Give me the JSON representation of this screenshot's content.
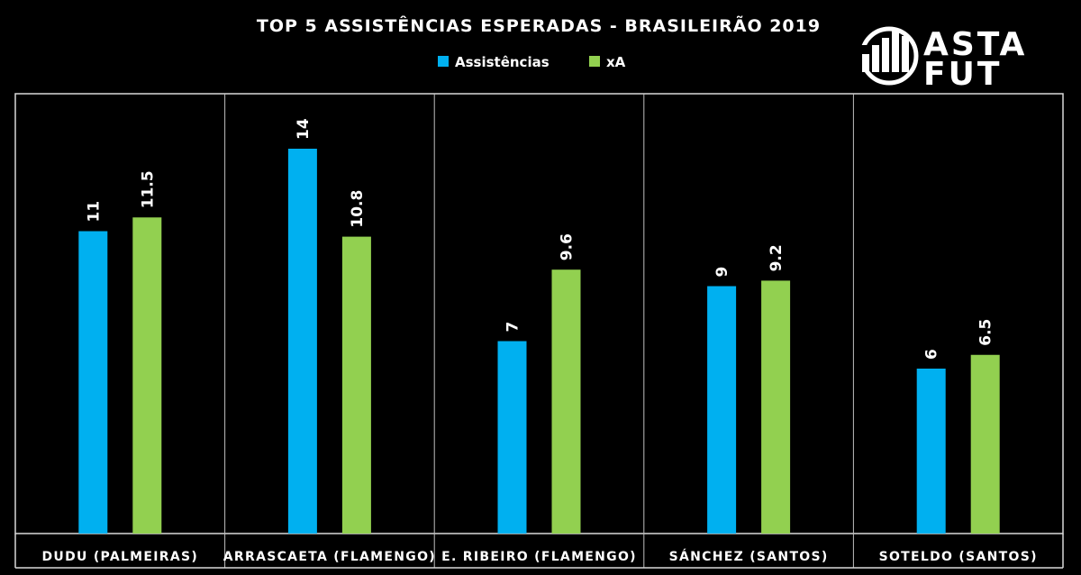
{
  "chart_data": {
    "type": "bar",
    "title": "TOP 5 ASSISTÊNCIAS ESPERADAS - BRASILEIRÃO 2019",
    "categories": [
      "DUDU (PALMEIRAS)",
      "ARRASCAETA (FLAMENGO)",
      "E. RIBEIRO (FLAMENGO)",
      "SÁNCHEZ (SANTOS)",
      "SOTELDO (SANTOS)"
    ],
    "series": [
      {
        "name": "Assistências",
        "values": [
          11,
          14,
          7,
          9,
          6
        ],
        "color": "#00b0f0"
      },
      {
        "name": "xA",
        "values": [
          11.5,
          10.8,
          9.6,
          9.2,
          6.5
        ],
        "color": "#92d050"
      }
    ],
    "value_labels": [
      [
        "11",
        "14",
        "7",
        "9",
        "6"
      ],
      [
        "11.5",
        "10.8",
        "9.6",
        "9.2",
        "6.5"
      ]
    ],
    "ylim": [
      0,
      16
    ],
    "grid": false,
    "legend_position": "top-center"
  },
  "logo": {
    "line1": "ASTA",
    "line2": "FUT",
    "icon": "bar-chart-logo-icon"
  },
  "colors": {
    "background": "#000000",
    "frame": "#d9d9d9",
    "divider": "#bfbfbf"
  }
}
